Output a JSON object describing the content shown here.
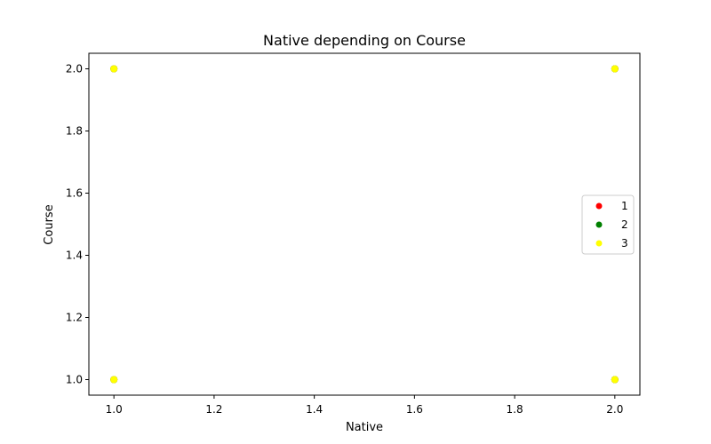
{
  "chart_data": {
    "type": "scatter",
    "title": "Native depending on Course",
    "xlabel": "Native",
    "ylabel": "Course",
    "xlim": [
      0.95,
      2.05
    ],
    "ylim": [
      0.95,
      2.05
    ],
    "xticks": [
      1.0,
      1.2,
      1.4,
      1.6,
      1.8,
      2.0
    ],
    "yticks": [
      1.0,
      1.2,
      1.4,
      1.6,
      1.8,
      2.0
    ],
    "xtick_labels": [
      "1.0",
      "1.2",
      "1.4",
      "1.6",
      "1.8",
      "2.0"
    ],
    "ytick_labels": [
      "1.0",
      "1.2",
      "1.4",
      "1.6",
      "1.8",
      "2.0"
    ],
    "grid": false,
    "legend_position": "center-right",
    "series": [
      {
        "name": "1",
        "color": "#ff0000",
        "points": [
          [
            1,
            1
          ],
          [
            1,
            2
          ],
          [
            2,
            1
          ],
          [
            2,
            2
          ]
        ]
      },
      {
        "name": "2",
        "color": "#008000",
        "points": [
          [
            1,
            1
          ],
          [
            1,
            2
          ],
          [
            2,
            1
          ],
          [
            2,
            2
          ]
        ]
      },
      {
        "name": "3",
        "color": "#ffff00",
        "points": [
          [
            1,
            1
          ],
          [
            1,
            2
          ],
          [
            2,
            1
          ],
          [
            2,
            2
          ]
        ]
      }
    ]
  }
}
